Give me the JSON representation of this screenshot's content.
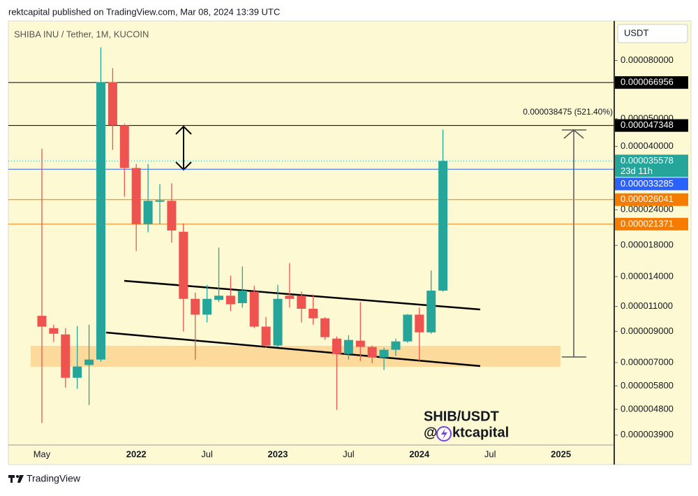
{
  "header": {
    "publisher": "rektcapital published on TradingView.com, Mar 08, 2024 13:39 UTC",
    "brand": "TradingView"
  },
  "chart_data": {
    "type": "candlestick",
    "title": "SHIBA INU / Tether, 1M, KUCOIN",
    "currency": "USDT",
    "log_scale": true,
    "up_color": "#26a69a",
    "down_color": "#ef5350",
    "x": [
      "2021-05",
      "2021-06",
      "2021-07",
      "2021-08",
      "2021-09",
      "2021-10",
      "2021-11",
      "2021-12",
      "2022-01",
      "2022-02",
      "2022-03",
      "2022-04",
      "2022-05",
      "2022-06",
      "2022-07",
      "2022-08",
      "2022-09",
      "2022-10",
      "2022-11",
      "2022-12",
      "2023-01",
      "2023-02",
      "2023-03",
      "2023-04",
      "2023-05",
      "2023-06",
      "2023-07",
      "2023-08",
      "2023-09",
      "2023-10",
      "2023-11",
      "2023-12",
      "2024-01",
      "2024-02",
      "2024-03"
    ],
    "open": [
      1.02e-05,
      9.24e-06,
      8.78e-06,
      6.19e-06,
      6.86e-06,
      7.17e-06,
      6.72e-05,
      4.74e-05,
      3.36e-05,
      2.14e-05,
      2.56e-05,
      2.58e-05,
      2.01e-05,
      1.17e-05,
      1.03e-05,
      1.16e-05,
      1.2e-05,
      1.13e-05,
      1.24e-05,
      9.35e-06,
      8.03e-06,
      1.2e-05,
      1.2e-05,
      1.08e-05,
      1e-05,
      8.49e-06,
      7.5e-06,
      8.35e-06,
      7.94e-06,
      7.29e-06,
      7.76e-06,
      8.3e-06,
      1.03e-05,
      8.93e-06,
      1.25e-05
    ],
    "high": [
      3.93e-05,
      9.5e-06,
      9.24e-06,
      9.4e-06,
      9.5e-06,
      8.9e-05,
      7.52e-05,
      4.8e-05,
      3.47e-05,
      3.47e-05,
      2.95e-05,
      2.97e-05,
      2.15e-05,
      1.23e-05,
      1.31e-05,
      1.77e-05,
      1.41e-05,
      1.52e-05,
      1.3e-05,
      1.01e-05,
      1.31e-05,
      1.56e-05,
      1.24e-05,
      1.21e-05,
      1.01e-05,
      8.64e-06,
      8.73e-06,
      1.14e-05,
      8.03e-06,
      7.89e-06,
      8.49e-06,
      1.035e-05,
      1.09e-05,
      1.47e-05,
      4.58e-05
    ],
    "low": [
      4.3e-06,
      8.26e-06,
      5.72e-06,
      5.66e-06,
      4.97e-06,
      7.05e-06,
      3.89e-05,
      2.67e-05,
      1.72e-05,
      2e-05,
      2.13e-05,
      1.84e-05,
      8.99e-06,
      7.17e-06,
      9.67e-06,
      1.14e-05,
      1.06e-05,
      1.09e-05,
      9.24e-06,
      7.89e-06,
      7.94e-06,
      1.09e-05,
      9.67e-06,
      9.5e-06,
      8.4e-06,
      4.78e-06,
      7.17e-06,
      7.09e-06,
      6.96e-06,
      6.59e-06,
      7.38e-06,
      8.21e-06,
      7.09e-06,
      8.83e-06,
      1.24e-05
    ],
    "close": [
      9.35e-06,
      8.83e-06,
      6.19e-06,
      6.78e-06,
      7.17e-06,
      6.72e-05,
      4.74e-05,
      3.36e-05,
      2.14e-05,
      2.58e-05,
      2.59e-05,
      2.03e-05,
      1.17e-05,
      1.03e-05,
      1.17e-05,
      1.2e-05,
      1.12e-05,
      1.25e-05,
      9.35e-06,
      8.03e-06,
      1.17e-05,
      1.17e-05,
      1.08e-05,
      1e-05,
      8.59e-06,
      7.5e-06,
      8.4e-06,
      7.94e-06,
      7.29e-06,
      7.76e-06,
      8.3e-06,
      1.03e-05,
      8.93e-06,
      1.25e-05,
      3.5578e-05
    ],
    "ylim": [
      3.6e-06,
      0.00011
    ],
    "yticks": [
      {
        "value": 8e-05,
        "label": "0.000080000"
      },
      {
        "value": 5e-05,
        "label": "0.000050000"
      },
      {
        "value": 4e-05,
        "label": "0.000040000"
      },
      {
        "value": 2.4e-05,
        "label": "0.000024000"
      },
      {
        "value": 1.8e-05,
        "label": "0.000018000"
      },
      {
        "value": 1.4e-05,
        "label": "0.000014000"
      },
      {
        "value": 1.1e-05,
        "label": "0.000011000"
      },
      {
        "value": 9e-06,
        "label": "0.000009000"
      },
      {
        "value": 7e-06,
        "label": "0.000007000"
      },
      {
        "value": 5.8e-06,
        "label": "0.000005800"
      },
      {
        "value": 4.8e-06,
        "label": "0.000004800"
      },
      {
        "value": 3.9e-06,
        "label": "0.000003900"
      }
    ],
    "xticks": [
      {
        "value": "2021-05",
        "label": "May"
      },
      {
        "value": "2022-01",
        "label": "2022"
      },
      {
        "value": "2022-07",
        "label": "Jul"
      },
      {
        "value": "2023-01",
        "label": "2023"
      },
      {
        "value": "2023-07",
        "label": "Jul"
      },
      {
        "value": "2024-01",
        "label": "2024"
      },
      {
        "value": "2024-07",
        "label": "Jul"
      },
      {
        "value": "2025-01",
        "label": "2025"
      }
    ],
    "price_lines": [
      {
        "value": 6.6956e-05,
        "color": "#000000"
      },
      {
        "value": 4.7348e-05,
        "color": "#000000"
      },
      {
        "value": 3.3285e-05,
        "color": "#2962ff"
      },
      {
        "value": 2.6041e-05,
        "color": "#f57c00"
      },
      {
        "value": 2.1371e-05,
        "color": "#f57c00"
      }
    ],
    "current_price": {
      "value": 3.5578e-05,
      "countdown": "23d 11h",
      "color": "#26a69a"
    },
    "measure_label": "0.000038475 (521.40%)",
    "watermark": {
      "pair": "SHIB/USDT",
      "handle_start": "@",
      "handle_end": "ktcapital"
    }
  }
}
